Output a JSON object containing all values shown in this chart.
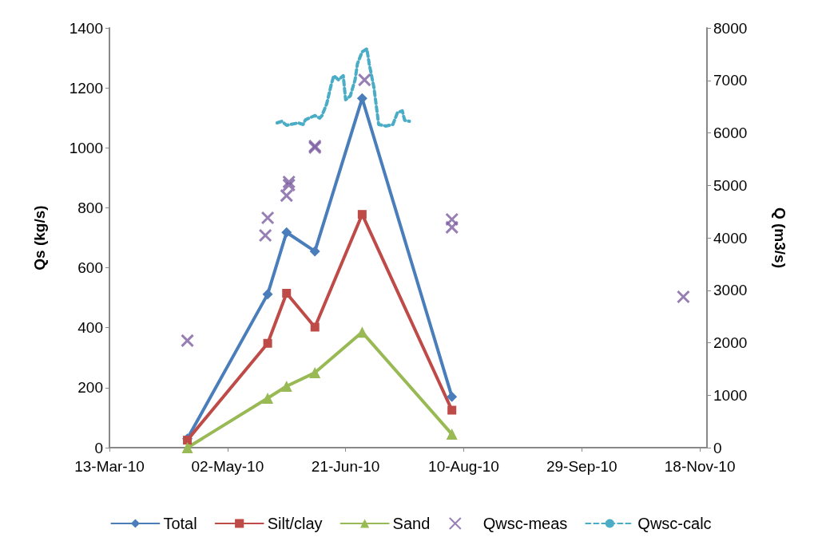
{
  "chart_data": {
    "type": "line",
    "ylabel": "Qs (kg/s)",
    "y2label": "Q (m3/s)",
    "xlim": [
      "2010-03-13",
      "2010-11-21"
    ],
    "xticks": [
      {
        "value": "2010-03-13",
        "label": "13-Mar-10"
      },
      {
        "value": "2010-05-02",
        "label": "02-May-10"
      },
      {
        "value": "2010-06-21",
        "label": "21-Jun-10"
      },
      {
        "value": "2010-08-10",
        "label": "10-Aug-10"
      },
      {
        "value": "2010-09-29",
        "label": "29-Sep-10"
      },
      {
        "value": "2010-11-18",
        "label": "18-Nov-10"
      }
    ],
    "ylim": [
      0,
      1400
    ],
    "yticks": [
      0,
      200,
      400,
      600,
      800,
      1000,
      1200,
      1400
    ],
    "y2lim": [
      0,
      8000
    ],
    "y2ticks": [
      0,
      1000,
      2000,
      3000,
      4000,
      5000,
      6000,
      7000,
      8000
    ],
    "grid": false,
    "legend": "bottom",
    "series": [
      {
        "name": "Total",
        "color": "#4a7ebb",
        "marker": "diamond",
        "line_style": "solid",
        "x": [
          "2010-04-15",
          "2010-05-19",
          "2010-05-27",
          "2010-06-08",
          "2010-06-28",
          "2010-08-05"
        ],
        "values": [
          30,
          512,
          718,
          655,
          1165,
          170
        ]
      },
      {
        "name": "Silt/clay",
        "color": "#be4b48",
        "marker": "square",
        "line_style": "solid",
        "x": [
          "2010-04-15",
          "2010-05-19",
          "2010-05-27",
          "2010-06-08",
          "2010-06-28",
          "2010-08-05"
        ],
        "values": [
          25,
          348,
          515,
          402,
          778,
          125
        ]
      },
      {
        "name": "Sand",
        "color": "#98b954",
        "marker": "triangle",
        "line_style": "solid",
        "x": [
          "2010-04-15",
          "2010-05-19",
          "2010-05-27",
          "2010-06-08",
          "2010-06-28",
          "2010-08-05"
        ],
        "values": [
          0,
          165,
          205,
          250,
          385,
          45
        ]
      },
      {
        "name": "Qwsc-meas",
        "type": "scatter",
        "axis": "y2",
        "color": "#7d5fa0",
        "marker": "cross",
        "x": [
          "2010-04-15",
          "2010-05-18",
          "2010-05-19",
          "2010-05-27",
          "2010-05-28",
          "2010-05-28",
          "2010-06-08",
          "2010-06-08",
          "2010-06-29",
          "2010-08-05",
          "2010-08-05",
          "2010-11-11"
        ],
        "values": [
          2040,
          4045,
          4380,
          4805,
          5005,
          5065,
          5720,
          5750,
          7010,
          4350,
          4200,
          2875
        ]
      },
      {
        "name": "Qwsc-calc",
        "axis": "y2",
        "color": "#4bacc6",
        "marker": "none",
        "line_style": "dashed",
        "x": [
          "2010-05-23",
          "2010-05-25",
          "2010-05-27",
          "2010-06-01",
          "2010-06-03",
          "2010-06-04",
          "2010-06-08",
          "2010-06-10",
          "2010-06-11",
          "2010-06-13",
          "2010-06-15",
          "2010-06-16",
          "2010-06-18",
          "2010-06-20",
          "2010-06-21",
          "2010-06-23",
          "2010-06-25",
          "2010-06-26",
          "2010-06-28",
          "2010-06-30",
          "2010-07-01",
          "2010-07-03",
          "2010-07-05",
          "2010-07-08",
          "2010-07-11",
          "2010-07-13",
          "2010-07-15",
          "2010-07-16",
          "2010-07-18"
        ],
        "values": [
          6190,
          6220,
          6145,
          6190,
          6160,
          6250,
          6330,
          6280,
          6330,
          6555,
          6935,
          7090,
          7010,
          7090,
          6630,
          6705,
          7010,
          7315,
          7545,
          7600,
          7315,
          6860,
          6160,
          6130,
          6160,
          6390,
          6420,
          6240,
          6220
        ]
      }
    ]
  }
}
